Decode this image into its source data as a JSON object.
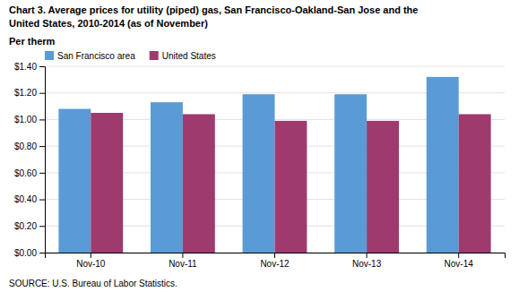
{
  "chart_data": {
    "type": "bar",
    "title": "Chart 3. Average prices for utility (piped) gas, San Francisco-Oakland-San Jose and the",
    "subtitle": "United States, 2010-2014  (as of November)",
    "ylabel": "Per therm",
    "annotations": [
      "SOURCE: U.S. Bureau of Labor Statistics."
    ],
    "categories": [
      "Nov-10",
      "Nov-11",
      "Nov-12",
      "Nov-13",
      "Nov-14"
    ],
    "series": [
      {
        "name": "San Francisco area",
        "color": "#5B9BD5",
        "values": [
          1.08,
          1.13,
          1.19,
          1.19,
          1.32
        ]
      },
      {
        "name": "United States",
        "color": "#9E3A6E",
        "values": [
          1.05,
          1.04,
          0.99,
          0.99,
          1.04
        ]
      }
    ],
    "ylim": [
      0,
      1.4
    ],
    "yticks": [
      {
        "value": 0.0,
        "label": "$0.00"
      },
      {
        "value": 0.2,
        "label": "$0.20"
      },
      {
        "value": 0.4,
        "label": "$0.40"
      },
      {
        "value": 0.6,
        "label": "$0.60"
      },
      {
        "value": 0.8,
        "label": "$0.80"
      },
      {
        "value": 1.0,
        "label": "$1.00"
      },
      {
        "value": 1.2,
        "label": "$1.20"
      },
      {
        "value": 1.4,
        "label": "$1.40"
      }
    ],
    "grid": true,
    "legend": "top-left"
  }
}
